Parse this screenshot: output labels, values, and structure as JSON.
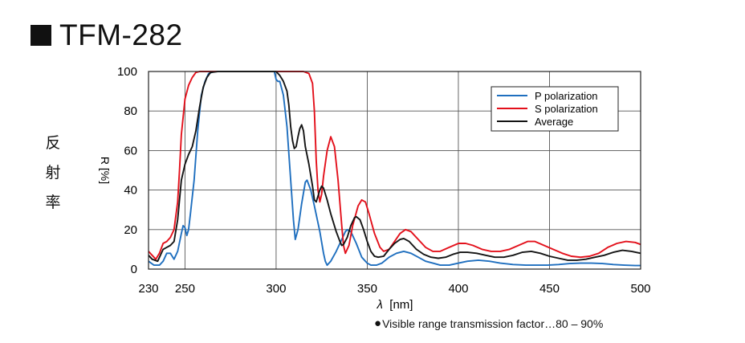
{
  "header": {
    "title": "TFM-282"
  },
  "side_label": {
    "characters": [
      "反",
      "射",
      "率"
    ]
  },
  "footnote": {
    "bullet": "●",
    "text": "Visible range transmission factor…80 – 90%"
  },
  "chart_data": {
    "type": "line",
    "xlabel": "λ [nm]",
    "ylabel": "R [%]",
    "xlim": [
      230,
      500
    ],
    "ylim": [
      0,
      100
    ],
    "x_ticks": [
      230,
      250,
      300,
      350,
      400,
      450,
      500
    ],
    "y_ticks": [
      0,
      20,
      40,
      60,
      80,
      100
    ],
    "x_gridlines": [
      250,
      300,
      350,
      400,
      450,
      500
    ],
    "grid": true,
    "legend_position": "top-right",
    "series": [
      {
        "name": "P polarization",
        "color": "#1f6fbf",
        "points": [
          [
            230,
            4
          ],
          [
            233,
            2
          ],
          [
            236,
            2
          ],
          [
            238,
            4
          ],
          [
            240,
            8
          ],
          [
            242,
            8
          ],
          [
            244,
            5
          ],
          [
            246,
            9
          ],
          [
            248,
            18
          ],
          [
            249,
            22
          ],
          [
            250,
            21
          ],
          [
            251,
            17
          ],
          [
            252,
            20
          ],
          [
            253,
            28
          ],
          [
            255,
            45
          ],
          [
            257,
            70
          ],
          [
            259,
            88
          ],
          [
            261,
            95
          ],
          [
            263,
            99
          ],
          [
            266,
            100
          ],
          [
            275,
            100
          ],
          [
            285,
            100
          ],
          [
            295,
            100
          ],
          [
            299,
            100
          ],
          [
            300,
            96
          ],
          [
            301,
            95
          ],
          [
            302,
            95
          ],
          [
            304,
            88
          ],
          [
            306,
            72
          ],
          [
            308,
            45
          ],
          [
            309.5,
            25
          ],
          [
            310.5,
            15
          ],
          [
            312,
            20
          ],
          [
            314,
            33
          ],
          [
            316,
            44
          ],
          [
            317,
            45
          ],
          [
            319,
            40
          ],
          [
            321,
            32
          ],
          [
            324,
            19
          ],
          [
            326,
            8
          ],
          [
            327,
            4
          ],
          [
            328,
            2
          ],
          [
            330,
            4
          ],
          [
            333,
            9
          ],
          [
            336,
            15
          ],
          [
            338,
            19
          ],
          [
            339,
            20
          ],
          [
            341,
            19
          ],
          [
            344,
            13
          ],
          [
            347,
            6
          ],
          [
            350,
            3
          ],
          [
            352,
            2
          ],
          [
            355,
            2
          ],
          [
            358,
            3
          ],
          [
            362,
            6
          ],
          [
            366,
            8
          ],
          [
            370,
            9
          ],
          [
            374,
            8
          ],
          [
            378,
            6
          ],
          [
            382,
            4
          ],
          [
            386,
            3
          ],
          [
            390,
            2
          ],
          [
            395,
            2
          ],
          [
            400,
            3
          ],
          [
            405,
            4
          ],
          [
            411,
            4.5
          ],
          [
            417,
            4
          ],
          [
            423,
            3
          ],
          [
            430,
            2.3
          ],
          [
            437,
            2
          ],
          [
            443,
            2
          ],
          [
            449,
            2
          ],
          [
            455,
            2.3
          ],
          [
            461,
            2.8
          ],
          [
            467,
            3
          ],
          [
            473,
            3
          ],
          [
            479,
            2.8
          ],
          [
            485,
            2.3
          ],
          [
            491,
            2
          ],
          [
            497,
            1.8
          ],
          [
            500,
            1.8
          ]
        ]
      },
      {
        "name": "S polarization",
        "color": "#e3101b",
        "points": [
          [
            230,
            9
          ],
          [
            232,
            7
          ],
          [
            234,
            5
          ],
          [
            236,
            8
          ],
          [
            238,
            13
          ],
          [
            240,
            14
          ],
          [
            242,
            16
          ],
          [
            244,
            20
          ],
          [
            246,
            34
          ],
          [
            247,
            50
          ],
          [
            248,
            68
          ],
          [
            250,
            86
          ],
          [
            252,
            93
          ],
          [
            254,
            97
          ],
          [
            256,
            99.5
          ],
          [
            258,
            100
          ],
          [
            270,
            100
          ],
          [
            290,
            100
          ],
          [
            300,
            100
          ],
          [
            310,
            100
          ],
          [
            315,
            100
          ],
          [
            318,
            99
          ],
          [
            320,
            94
          ],
          [
            321,
            80
          ],
          [
            322,
            55
          ],
          [
            323,
            40
          ],
          [
            324,
            34
          ],
          [
            325,
            38
          ],
          [
            326,
            47
          ],
          [
            328,
            60
          ],
          [
            330,
            67
          ],
          [
            332,
            62
          ],
          [
            334,
            45
          ],
          [
            336,
            22
          ],
          [
            337,
            12
          ],
          [
            338,
            8
          ],
          [
            340,
            12
          ],
          [
            342,
            22
          ],
          [
            345,
            32
          ],
          [
            347,
            35
          ],
          [
            349,
            34
          ],
          [
            351,
            28
          ],
          [
            354,
            18
          ],
          [
            357,
            11
          ],
          [
            359,
            9
          ],
          [
            362,
            10
          ],
          [
            365,
            14
          ],
          [
            368,
            18
          ],
          [
            371,
            20
          ],
          [
            374,
            19
          ],
          [
            378,
            15
          ],
          [
            382,
            11
          ],
          [
            386,
            9
          ],
          [
            390,
            9
          ],
          [
            395,
            11
          ],
          [
            400,
            13
          ],
          [
            404,
            13
          ],
          [
            408,
            12
          ],
          [
            413,
            10
          ],
          [
            418,
            9
          ],
          [
            423,
            9
          ],
          [
            428,
            10
          ],
          [
            433,
            12
          ],
          [
            438,
            14
          ],
          [
            442,
            14
          ],
          [
            447,
            12
          ],
          [
            452,
            10
          ],
          [
            457,
            8
          ],
          [
            462,
            6.5
          ],
          [
            467,
            6
          ],
          [
            472,
            6.5
          ],
          [
            477,
            8
          ],
          [
            482,
            11
          ],
          [
            487,
            13
          ],
          [
            492,
            14
          ],
          [
            497,
            13.5
          ],
          [
            500,
            12.5
          ]
        ]
      },
      {
        "name": "Average",
        "color": "#141414",
        "points": [
          [
            230,
            7
          ],
          [
            232,
            5
          ],
          [
            235,
            4
          ],
          [
            238,
            10
          ],
          [
            240,
            11
          ],
          [
            242,
            12
          ],
          [
            244,
            14
          ],
          [
            246,
            25
          ],
          [
            248,
            45
          ],
          [
            250,
            53
          ],
          [
            252,
            58
          ],
          [
            254,
            62
          ],
          [
            256,
            70
          ],
          [
            258,
            82
          ],
          [
            260,
            92
          ],
          [
            262,
            97
          ],
          [
            264,
            99.5
          ],
          [
            268,
            100
          ],
          [
            280,
            100
          ],
          [
            300,
            100
          ],
          [
            302,
            98
          ],
          [
            304,
            95
          ],
          [
            306,
            90
          ],
          [
            307,
            83
          ],
          [
            308,
            72
          ],
          [
            309,
            65
          ],
          [
            310,
            61
          ],
          [
            311,
            62
          ],
          [
            312,
            67
          ],
          [
            313,
            71
          ],
          [
            314,
            73
          ],
          [
            315,
            70
          ],
          [
            316,
            62
          ],
          [
            318,
            53
          ],
          [
            320,
            42
          ],
          [
            321,
            35
          ],
          [
            322,
            34
          ],
          [
            324,
            40
          ],
          [
            325,
            42
          ],
          [
            326,
            41
          ],
          [
            328,
            35
          ],
          [
            330,
            28
          ],
          [
            333,
            19
          ],
          [
            335,
            14
          ],
          [
            336,
            12
          ],
          [
            337,
            12.5
          ],
          [
            339,
            16
          ],
          [
            341,
            22
          ],
          [
            343,
            26
          ],
          [
            344,
            26.5
          ],
          [
            346,
            25
          ],
          [
            348,
            20
          ],
          [
            350,
            14
          ],
          [
            352,
            9
          ],
          [
            354,
            6.5
          ],
          [
            356,
            6
          ],
          [
            359,
            6.5
          ],
          [
            362,
            10
          ],
          [
            365,
            13
          ],
          [
            368,
            15
          ],
          [
            370,
            15.5
          ],
          [
            373,
            14
          ],
          [
            377,
            10
          ],
          [
            381,
            7.5
          ],
          [
            385,
            6
          ],
          [
            389,
            5.5
          ],
          [
            393,
            6
          ],
          [
            397,
            7.5
          ],
          [
            401,
            8.5
          ],
          [
            405,
            8.5
          ],
          [
            410,
            8
          ],
          [
            415,
            7
          ],
          [
            420,
            6
          ],
          [
            425,
            6
          ],
          [
            430,
            7
          ],
          [
            435,
            8.5
          ],
          [
            440,
            9
          ],
          [
            445,
            8
          ],
          [
            450,
            6.5
          ],
          [
            455,
            5.5
          ],
          [
            460,
            4.5
          ],
          [
            465,
            4.5
          ],
          [
            470,
            5
          ],
          [
            475,
            6
          ],
          [
            480,
            7
          ],
          [
            485,
            8.5
          ],
          [
            490,
            9.5
          ],
          [
            495,
            9
          ],
          [
            500,
            8
          ]
        ]
      }
    ]
  }
}
